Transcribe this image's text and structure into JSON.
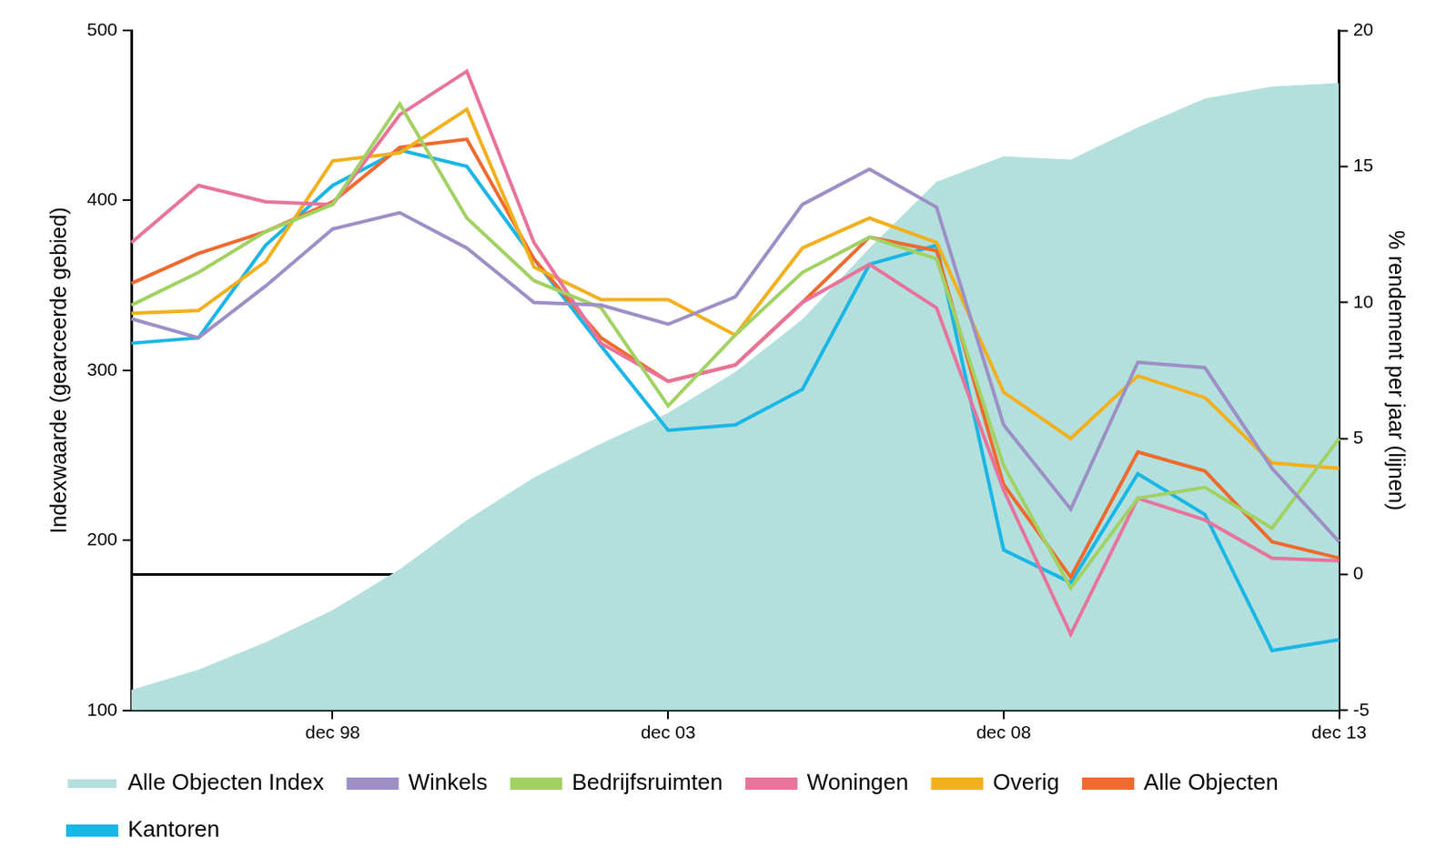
{
  "chart_data": {
    "type": "line",
    "categories": [
      null,
      null,
      null,
      "dec 98",
      null,
      null,
      null,
      null,
      "dec 03",
      null,
      null,
      null,
      null,
      "dec 08",
      null,
      null,
      null,
      null,
      "dec 13"
    ],
    "y_label": "Indexwaarde (gearceerde gebied)",
    "y2_label": "% rendement per jaar (lijnen)",
    "ylim": [
      100,
      500
    ],
    "yticks": [
      100,
      200,
      300,
      400,
      500
    ],
    "y2lim": [
      -5,
      20
    ],
    "y2ticks": [
      -5,
      0,
      5,
      10,
      15,
      20
    ],
    "grid": false,
    "legend": "bottom",
    "series": [
      {
        "name": "Alle Objecten Index",
        "type": "area",
        "color": "#b3e0dd",
        "values": [
          112,
          124,
          140,
          159,
          183,
          212,
          237,
          257,
          275,
          299,
          330,
          372,
          411,
          426,
          424,
          443,
          460,
          467,
          469
        ]
      },
      {
        "name": "Winkels",
        "axis": "y2",
        "color": "#9d8fc6",
        "values": [
          9.4,
          8.7,
          10.6,
          12.7,
          13.3,
          12.0,
          10.0,
          9.9,
          9.2,
          10.2,
          13.6,
          14.9,
          13.5,
          5.5,
          2.4,
          7.8,
          7.6,
          3.9,
          1.2
        ]
      },
      {
        "name": "Bedrijfsruimten",
        "axis": "y2",
        "color": "#a2d163",
        "values": [
          9.9,
          11.1,
          12.6,
          13.6,
          17.3,
          13.1,
          10.8,
          9.8,
          6.2,
          8.8,
          11.1,
          12.4,
          11.6,
          4.0,
          -0.5,
          2.8,
          3.2,
          1.7,
          5.0
        ]
      },
      {
        "name": "Woningen",
        "axis": "y2",
        "color": "#e8739b",
        "values": [
          12.2,
          14.3,
          13.7,
          13.6,
          16.9,
          18.5,
          12.2,
          8.5,
          7.1,
          7.7,
          10.0,
          11.4,
          9.8,
          3.1,
          -2.2,
          2.8,
          2.0,
          0.6,
          0.5
        ]
      },
      {
        "name": "Overig",
        "axis": "y2",
        "color": "#f2b01e",
        "values": [
          9.6,
          9.7,
          11.5,
          15.2,
          15.5,
          17.1,
          11.3,
          10.1,
          10.1,
          8.8,
          12.0,
          13.1,
          12.2,
          6.7,
          5.0,
          7.3,
          6.5,
          4.1,
          3.9
        ]
      },
      {
        "name": "Alle Objecten",
        "axis": "y2",
        "color": "#ef6a2e",
        "values": [
          10.7,
          11.8,
          12.6,
          13.7,
          15.7,
          16.0,
          11.6,
          8.7,
          7.1,
          7.7,
          10.0,
          12.4,
          11.9,
          3.3,
          -0.1,
          4.5,
          3.8,
          1.2,
          0.6
        ]
      },
      {
        "name": "Kantoren",
        "axis": "y2",
        "color": "#1ab6e6",
        "values": [
          8.5,
          8.7,
          12.1,
          14.3,
          15.6,
          15.0,
          11.6,
          8.4,
          5.3,
          5.5,
          6.8,
          11.4,
          12.1,
          0.9,
          -0.3,
          3.7,
          2.2,
          -2.8,
          -2.4
        ]
      }
    ]
  }
}
